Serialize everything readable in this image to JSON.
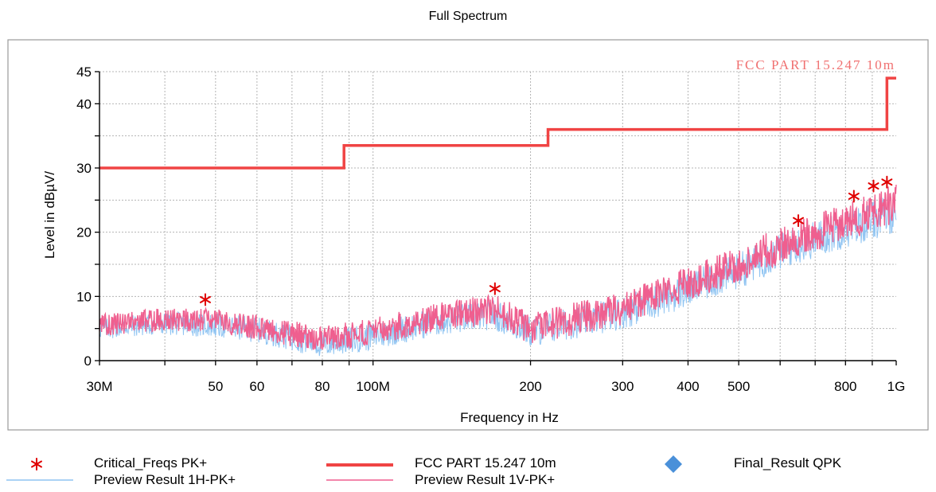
{
  "chart_data": {
    "type": "line",
    "title": "Full Spectrum",
    "xlabel": "Frequency in Hz",
    "ylabel": "Level in dBµV/",
    "x_scale": "log",
    "xlim": [
      30000000,
      1000000000
    ],
    "ylim": [
      0,
      45
    ],
    "grid": true,
    "legend_position": "bottom",
    "x_ticks": [
      {
        "value": 30000000,
        "label": "30M"
      },
      {
        "value": 50000000,
        "label": "50"
      },
      {
        "value": 60000000,
        "label": "60"
      },
      {
        "value": 80000000,
        "label": "80"
      },
      {
        "value": 100000000,
        "label": "100M"
      },
      {
        "value": 200000000,
        "label": "200"
      },
      {
        "value": 300000000,
        "label": "300"
      },
      {
        "value": 400000000,
        "label": "400"
      },
      {
        "value": 500000000,
        "label": "500"
      },
      {
        "value": 800000000,
        "label": "800"
      },
      {
        "value": 1000000000,
        "label": "1G"
      }
    ],
    "y_ticks": [
      {
        "value": 0,
        "label": "0"
      },
      {
        "value": 10,
        "label": "10"
      },
      {
        "value": 20,
        "label": "20"
      },
      {
        "value": 30,
        "label": "30"
      },
      {
        "value": 40,
        "label": "40"
      },
      {
        "value": 45,
        "label": "45"
      }
    ],
    "series": [
      {
        "name": "FCC PART 15.247 10m",
        "kind": "limit",
        "color": "#f04444",
        "x": [
          30000000,
          88000000,
          88000000,
          216000000,
          216000000,
          960000000,
          960000000,
          1000000000
        ],
        "y": [
          30,
          30,
          33.5,
          33.5,
          36,
          36,
          44,
          44
        ]
      },
      {
        "name": "Preview Result 1H-PK+",
        "kind": "trace",
        "color": "#8fc4f2",
        "x": [
          30000000,
          40000000,
          50000000,
          60000000,
          80000000,
          100000000,
          130000000,
          170000000,
          200000000,
          300000000,
          400000000,
          500000000,
          600000000,
          800000000,
          1000000000
        ],
        "y": [
          5,
          5.8,
          5.5,
          4.8,
          2.5,
          3.8,
          6.0,
          7.2,
          4.5,
          7.5,
          11,
          14,
          17,
          20.5,
          23
        ]
      },
      {
        "name": "Preview Result 1V-PK+",
        "kind": "trace",
        "color": "#ef5f8f",
        "x": [
          30000000,
          40000000,
          50000000,
          60000000,
          80000000,
          100000000,
          130000000,
          170000000,
          200000000,
          300000000,
          400000000,
          500000000,
          600000000,
          800000000,
          1000000000
        ],
        "y": [
          5.5,
          6.5,
          6.2,
          5.3,
          3.2,
          4.5,
          6.8,
          8.0,
          5.0,
          8.2,
          12,
          15,
          18,
          21.5,
          24.5
        ]
      },
      {
        "name": "Critical_Freqs PK+",
        "kind": "markers",
        "color": "#e00000",
        "x": [
          47800000,
          171000000,
          650000000,
          830000000,
          905000000,
          960000000
        ],
        "y": [
          9.5,
          11.2,
          21.8,
          25.6,
          27.2,
          27.8
        ]
      },
      {
        "name": "Final_Result QPK",
        "kind": "markers",
        "color": "#4a90d9",
        "x": [],
        "y": []
      }
    ],
    "annotations": [
      "FCC PART 15.247 10m"
    ]
  },
  "legend": [
    {
      "label": "Critical_Freqs PK+",
      "icon": "asterisk"
    },
    {
      "label": "FCC PART 15.247 10m",
      "icon": "thick-line"
    },
    {
      "label": "Final_Result QPK",
      "icon": "diamond"
    },
    {
      "label": "Preview Result 1H-PK+",
      "icon": "thin-line"
    },
    {
      "label": "Preview Result 1V-PK+",
      "icon": "thin-line"
    }
  ]
}
